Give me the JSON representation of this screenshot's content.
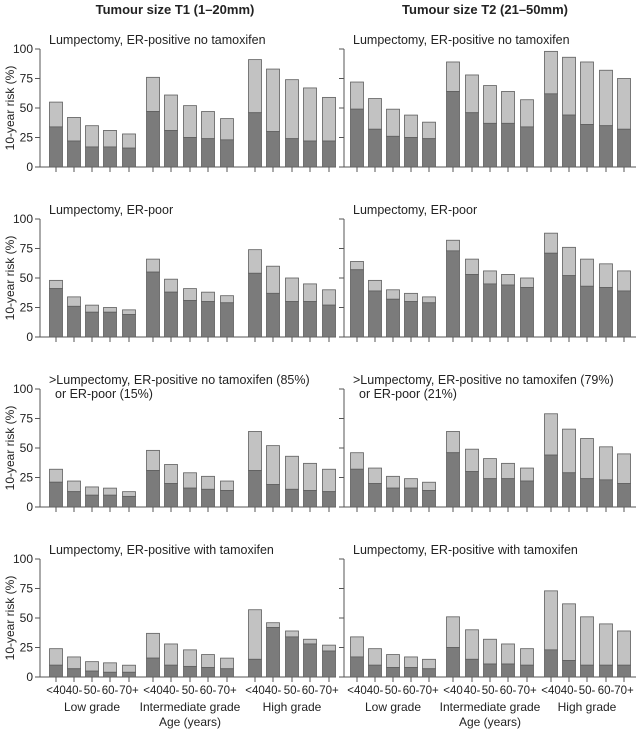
{
  "colors": {
    "recurrence_dark": "#7b7b7b",
    "total_light": "#c2c2c2",
    "outline": "#5e5e5e"
  },
  "chart_data": {
    "type": "bar",
    "stacked": true,
    "column_titles": [
      "Tumour size T1 (1–20mm)",
      "Tumour size T2 (21–50mm)"
    ],
    "ylabel": "10-year risk (%)",
    "xlabel": "Age (years)",
    "ylim": [
      0,
      100
    ],
    "yticks": [
      "0",
      "25",
      "50",
      "75",
      "100"
    ],
    "groups": [
      "Low grade",
      "Intermediate grade",
      "High grade"
    ],
    "categories": [
      "<40",
      "40-",
      "50-",
      "60-",
      "70+"
    ],
    "value_note_dark_is_lower_segment_total_is_bar_top": "",
    "panels": [
      {
        "title": [
          "Lumpectomy, ER-positive no tamoxifen"
        ],
        "column": 0,
        "dark": [
          34,
          22,
          17,
          17,
          16,
          47,
          31,
          25,
          24,
          23,
          46,
          30,
          24,
          22,
          22
        ],
        "total": [
          55,
          42,
          35,
          31,
          28,
          76,
          61,
          52,
          47,
          41,
          91,
          83,
          74,
          67,
          59
        ]
      },
      {
        "title": [
          "Lumpectomy, ER-positive no tamoxifen"
        ],
        "column": 1,
        "dark": [
          49,
          32,
          26,
          25,
          24,
          64,
          46,
          37,
          37,
          34,
          62,
          44,
          36,
          35,
          32
        ],
        "total": [
          72,
          58,
          49,
          44,
          38,
          89,
          78,
          69,
          64,
          57,
          98,
          93,
          89,
          82,
          75
        ]
      },
      {
        "title": [
          "Lumpectomy, ER-poor"
        ],
        "column": 0,
        "dark": [
          41,
          26,
          21,
          21,
          19,
          55,
          38,
          31,
          30,
          29,
          54,
          37,
          30,
          30,
          27
        ],
        "total": [
          48,
          34,
          27,
          25,
          23,
          66,
          49,
          41,
          38,
          35,
          74,
          60,
          50,
          45,
          40
        ]
      },
      {
        "title": [
          "Lumpectomy, ER-poor"
        ],
        "column": 1,
        "dark": [
          57,
          39,
          32,
          30,
          29,
          73,
          53,
          45,
          44,
          42,
          71,
          52,
          43,
          42,
          39
        ],
        "total": [
          64,
          48,
          40,
          37,
          34,
          82,
          66,
          56,
          53,
          50,
          88,
          76,
          66,
          62,
          56
        ]
      },
      {
        "title": [
          ">Lumpectomy, ER-positive no tamoxifen (85%)",
          "or ER-poor (15%)"
        ],
        "column": 0,
        "dark": [
          21,
          13,
          10,
          10,
          9,
          31,
          20,
          16,
          15,
          14,
          31,
          19,
          15,
          14,
          13
        ],
        "total": [
          32,
          22,
          17,
          16,
          13,
          48,
          36,
          29,
          26,
          22,
          64,
          52,
          43,
          37,
          32
        ]
      },
      {
        "title": [
          ">Lumpectomy, ER-positive no tamoxifen (79%)",
          "or ER-poor (21%)"
        ],
        "column": 1,
        "dark": [
          32,
          20,
          16,
          16,
          14,
          46,
          30,
          24,
          24,
          22,
          44,
          29,
          24,
          23,
          20
        ],
        "total": [
          46,
          33,
          26,
          24,
          21,
          64,
          49,
          41,
          37,
          33,
          79,
          66,
          58,
          51,
          45
        ]
      },
      {
        "title": [
          "Lumpectomy, ER-positive with tamoxifen"
        ],
        "column": 0,
        "dark": [
          10,
          7,
          5,
          4,
          4,
          16,
          10,
          9,
          8,
          7,
          15,
          42,
          34,
          28,
          22
        ],
        "total": [
          24,
          17,
          13,
          12,
          10,
          37,
          28,
          23,
          19,
          16,
          57,
          46,
          39,
          32,
          27
        ]
      },
      {
        "title": [
          "Lumpectomy, ER-positive with tamoxifen"
        ],
        "column": 1,
        "dark": [
          17,
          10,
          8,
          8,
          7,
          25,
          15,
          11,
          11,
          10,
          23,
          14,
          10,
          10,
          10
        ],
        "total": [
          34,
          24,
          19,
          17,
          15,
          51,
          40,
          32,
          28,
          24,
          73,
          62,
          51,
          45,
          39
        ]
      }
    ]
  }
}
